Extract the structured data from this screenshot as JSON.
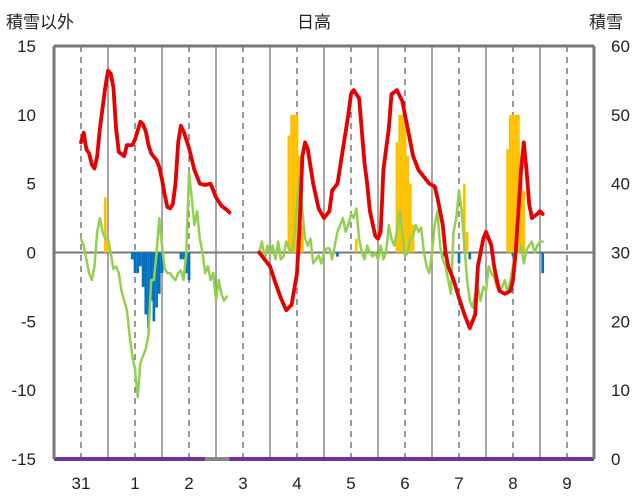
{
  "chart_data": {
    "type": "line",
    "title": "日高",
    "ylabel_left": "積雪以外",
    "ylabel_right": "積雪",
    "ylim_left": [
      -15,
      15
    ],
    "ylim_right": [
      0,
      60
    ],
    "yticks_left": [
      "15",
      "10",
      "5",
      "0",
      "-5",
      "-10",
      "-15"
    ],
    "yticks_right": [
      "60",
      "50",
      "40",
      "30",
      "20",
      "10",
      "0"
    ],
    "xticks": [
      "31",
      "1",
      "2",
      "3",
      "4",
      "5",
      "6",
      "7",
      "8",
      "9"
    ],
    "grid": "vertical-dashed",
    "colors": {
      "red_line": "#e60000",
      "green_line": "#92d050",
      "blue_bars": "#0070c0",
      "orange_bars": "#ffc000",
      "baseline": "#7030a0"
    },
    "series": [
      {
        "color": "red",
        "axis": "left",
        "points": [
          [
            31.0,
            8
          ],
          [
            31.05,
            8.7
          ],
          [
            31.1,
            7.5
          ],
          [
            31.15,
            7.2
          ],
          [
            31.2,
            6.4
          ],
          [
            31.25,
            6.1
          ],
          [
            31.3,
            7
          ],
          [
            31.35,
            9
          ],
          [
            31.45,
            12
          ],
          [
            31.5,
            13.2
          ],
          [
            31.55,
            13
          ],
          [
            31.6,
            12
          ],
          [
            31.65,
            9
          ],
          [
            31.7,
            7.3
          ],
          [
            31.8,
            7
          ],
          [
            31.85,
            7.8
          ],
          [
            31.95,
            7.8
          ],
          [
            32.0,
            8.2
          ],
          [
            32.1,
            9.5
          ],
          [
            32.15,
            9.3
          ],
          [
            32.2,
            8.8
          ],
          [
            32.25,
            7.8
          ],
          [
            32.3,
            7.2
          ],
          [
            32.4,
            6.7
          ],
          [
            32.45,
            6.2
          ],
          [
            32.5,
            5.3
          ],
          [
            32.55,
            4.2
          ],
          [
            32.6,
            3.3
          ],
          [
            32.65,
            3.2
          ],
          [
            32.7,
            3.5
          ],
          [
            32.75,
            5
          ],
          [
            32.8,
            8
          ],
          [
            32.85,
            9.2
          ],
          [
            32.9,
            8.8
          ],
          [
            33.0,
            7.6
          ],
          [
            33.1,
            6
          ],
          [
            33.2,
            5
          ],
          [
            33.3,
            4.9
          ],
          [
            33.4,
            5
          ],
          [
            33.5,
            4
          ],
          [
            33.6,
            3.4
          ],
          [
            33.7,
            3.1
          ],
          [
            33.75,
            2.9
          ]
        ]
      },
      {
        "color": "red",
        "axis": "left",
        "points": [
          [
            34.3,
            0
          ],
          [
            34.5,
            -1
          ],
          [
            34.6,
            -2.2
          ],
          [
            34.7,
            -3.3
          ],
          [
            34.8,
            -4.2
          ],
          [
            34.9,
            -3.8
          ],
          [
            35.0,
            -1.5
          ],
          [
            35.05,
            2
          ],
          [
            35.1,
            7
          ],
          [
            35.15,
            8
          ],
          [
            35.2,
            7.5
          ],
          [
            35.3,
            5
          ],
          [
            35.4,
            3.2
          ],
          [
            35.5,
            2.5
          ],
          [
            35.6,
            3
          ],
          [
            35.65,
            4.5
          ],
          [
            35.75,
            5
          ],
          [
            35.85,
            7.5
          ],
          [
            35.95,
            10
          ],
          [
            36.0,
            11.5
          ],
          [
            36.05,
            11.8
          ],
          [
            36.15,
            11.2
          ],
          [
            36.25,
            6.5
          ],
          [
            36.3,
            5
          ],
          [
            36.35,
            3
          ],
          [
            36.45,
            1.2
          ],
          [
            36.5,
            1
          ],
          [
            36.55,
            1.5
          ],
          [
            36.6,
            6
          ],
          [
            36.7,
            9
          ],
          [
            36.75,
            11.5
          ],
          [
            36.85,
            11.8
          ],
          [
            36.95,
            11
          ],
          [
            37.05,
            9
          ],
          [
            37.15,
            7
          ],
          [
            37.25,
            6
          ],
          [
            37.35,
            5.5
          ],
          [
            37.45,
            5
          ],
          [
            37.55,
            4.8
          ],
          [
            37.6,
            4
          ],
          [
            37.7,
            2
          ],
          [
            37.75,
            0
          ],
          [
            37.8,
            -1
          ],
          [
            37.9,
            -2
          ],
          [
            38.0,
            -3.3
          ],
          [
            38.1,
            -4.5
          ],
          [
            38.2,
            -5.5
          ],
          [
            38.3,
            -4.5
          ],
          [
            38.35,
            -1
          ],
          [
            38.45,
            1
          ],
          [
            38.5,
            1.5
          ],
          [
            38.6,
            0.5
          ],
          [
            38.65,
            -1
          ],
          [
            38.7,
            -2
          ],
          [
            38.75,
            -2.8
          ],
          [
            38.85,
            -3
          ],
          [
            38.95,
            -2.8
          ],
          [
            39.0,
            -2
          ],
          [
            39.05,
            0
          ],
          [
            39.1,
            3
          ],
          [
            39.15,
            6
          ],
          [
            39.2,
            8
          ],
          [
            39.25,
            6
          ],
          [
            39.3,
            3.5
          ],
          [
            39.35,
            2.5
          ],
          [
            39.45,
            2.8
          ],
          [
            39.5,
            3
          ],
          [
            39.55,
            2.8
          ]
        ]
      },
      {
        "color": "green",
        "axis": "left",
        "points": [
          [
            31.0,
            1
          ],
          [
            31.05,
            0.5
          ],
          [
            31.1,
            -0.5
          ],
          [
            31.15,
            -1.5
          ],
          [
            31.2,
            -2
          ],
          [
            31.25,
            -1
          ],
          [
            31.3,
            1.5
          ],
          [
            31.35,
            2.5
          ],
          [
            31.4,
            1.5
          ],
          [
            31.45,
            1
          ],
          [
            31.5,
            1
          ],
          [
            31.55,
            0
          ],
          [
            31.6,
            -1.2
          ],
          [
            31.65,
            -1
          ],
          [
            31.7,
            -1.5
          ],
          [
            31.75,
            -2.8
          ],
          [
            31.8,
            -3.5
          ],
          [
            31.85,
            -4.2
          ],
          [
            31.9,
            -6
          ],
          [
            31.95,
            -7.5
          ],
          [
            32.0,
            -8.5
          ],
          [
            32.05,
            -10.5
          ],
          [
            32.1,
            -8
          ],
          [
            32.15,
            -7.5
          ],
          [
            32.2,
            -7
          ],
          [
            32.25,
            -6
          ],
          [
            32.3,
            -2
          ],
          [
            32.35,
            -2
          ],
          [
            32.4,
            0
          ],
          [
            32.45,
            2.5
          ],
          [
            32.5,
            0.5
          ],
          [
            32.55,
            -1.2
          ],
          [
            32.6,
            -1.5
          ],
          [
            32.65,
            -1.5
          ],
          [
            32.7,
            -1.8
          ],
          [
            32.75,
            -2
          ],
          [
            32.8,
            -1.5
          ],
          [
            32.85,
            -1.3
          ],
          [
            32.9,
            -2
          ],
          [
            32.95,
            0
          ],
          [
            33.0,
            5.8
          ],
          [
            33.05,
            4
          ],
          [
            33.1,
            2
          ],
          [
            33.15,
            3
          ],
          [
            33.2,
            1
          ],
          [
            33.25,
            0
          ],
          [
            33.3,
            -1.5
          ],
          [
            33.35,
            -1
          ],
          [
            33.4,
            -2
          ],
          [
            33.45,
            -1.5
          ],
          [
            33.5,
            -3.5
          ],
          [
            33.55,
            -2
          ],
          [
            33.6,
            -3
          ],
          [
            33.65,
            -3.5
          ],
          [
            33.7,
            -3.2
          ]
        ]
      },
      {
        "color": "green",
        "axis": "left",
        "points": [
          [
            34.3,
            0
          ],
          [
            34.35,
            0.8
          ],
          [
            34.4,
            -0.5
          ],
          [
            34.45,
            0.5
          ],
          [
            34.5,
            0
          ],
          [
            34.55,
            0.5
          ],
          [
            34.6,
            -0.5
          ],
          [
            34.65,
            0.8
          ],
          [
            34.7,
            -0.5
          ],
          [
            34.75,
            -0.3
          ],
          [
            34.8,
            0.8
          ],
          [
            34.85,
            0.3
          ],
          [
            34.9,
            0
          ],
          [
            34.95,
            1
          ],
          [
            35.0,
            3.5
          ],
          [
            35.05,
            5.5
          ],
          [
            35.1,
            3
          ],
          [
            35.15,
            1
          ],
          [
            35.2,
            0.5
          ],
          [
            35.25,
            1
          ],
          [
            35.3,
            -0.8
          ],
          [
            35.35,
            -0.5
          ],
          [
            35.4,
            -0.2
          ],
          [
            35.45,
            -0.8
          ],
          [
            35.5,
            0
          ],
          [
            35.55,
            0.3
          ],
          [
            35.6,
            0.3
          ],
          [
            35.65,
            -0.5
          ],
          [
            35.7,
            0.5
          ],
          [
            35.75,
            1.5
          ],
          [
            35.8,
            2
          ],
          [
            35.85,
            2.5
          ],
          [
            35.9,
            1.5
          ],
          [
            35.95,
            2
          ],
          [
            36.0,
            2.8
          ],
          [
            36.05,
            2.5
          ],
          [
            36.1,
            3.2
          ],
          [
            36.15,
            1
          ],
          [
            36.2,
            0
          ],
          [
            36.25,
            -0.5
          ],
          [
            36.3,
            0.5
          ],
          [
            36.35,
            0
          ],
          [
            36.4,
            -0.3
          ],
          [
            36.45,
            0
          ],
          [
            36.5,
            -0.5
          ],
          [
            36.55,
            0.5
          ],
          [
            36.6,
            -0.5
          ],
          [
            36.65,
            0
          ],
          [
            36.7,
            2
          ],
          [
            36.75,
            1
          ],
          [
            36.8,
            0.5
          ],
          [
            36.85,
            1.5
          ],
          [
            36.9,
            3
          ],
          [
            36.95,
            1.5
          ],
          [
            37.0,
            -0.3
          ],
          [
            37.05,
            0
          ],
          [
            37.1,
            1
          ],
          [
            37.15,
            1.2
          ],
          [
            37.2,
            2
          ],
          [
            37.25,
            1.5
          ],
          [
            37.3,
            1.8
          ],
          [
            37.35,
            0
          ],
          [
            37.4,
            -1
          ],
          [
            37.45,
            -1.5
          ],
          [
            37.5,
            0
          ],
          [
            37.55,
            2
          ],
          [
            37.6,
            3
          ],
          [
            37.65,
            0.5
          ],
          [
            37.7,
            -0.5
          ],
          [
            37.75,
            -1
          ],
          [
            37.8,
            -2
          ],
          [
            37.85,
            -3
          ],
          [
            37.9,
            1.5
          ],
          [
            37.95,
            2.5
          ],
          [
            38.0,
            4.5
          ],
          [
            38.05,
            3
          ],
          [
            38.1,
            0.5
          ],
          [
            38.15,
            -2
          ],
          [
            38.2,
            -3.5
          ],
          [
            38.25,
            -4
          ],
          [
            38.3,
            -3
          ],
          [
            38.35,
            -2.5
          ],
          [
            38.4,
            -3.5
          ],
          [
            38.45,
            -2.5
          ],
          [
            38.5,
            -2.8
          ],
          [
            38.55,
            -1
          ],
          [
            38.6,
            -1.5
          ],
          [
            38.65,
            -1.8
          ],
          [
            38.7,
            -2.5
          ],
          [
            38.75,
            -2.8
          ],
          [
            38.8,
            -2.5
          ],
          [
            38.85,
            -2
          ],
          [
            38.9,
            -3
          ],
          [
            38.95,
            -2
          ],
          [
            39.0,
            -1
          ],
          [
            39.05,
            0.5
          ],
          [
            39.1,
            0
          ],
          [
            39.15,
            0.5
          ],
          [
            39.2,
            -0.8
          ],
          [
            39.25,
            0.2
          ],
          [
            39.3,
            0.5
          ],
          [
            39.35,
            0.8
          ],
          [
            39.4,
            0
          ],
          [
            39.45,
            0.5
          ],
          [
            39.5,
            0.8
          ],
          [
            39.55,
            0.8
          ]
        ]
      }
    ],
    "bars_blue": [
      [
        31.95,
        -0.5
      ],
      [
        32.0,
        -1.5
      ],
      [
        32.05,
        -1.5
      ],
      [
        32.1,
        -1.0
      ],
      [
        32.15,
        -2.5
      ],
      [
        32.2,
        -4.5
      ],
      [
        32.25,
        -5.5
      ],
      [
        32.3,
        -3.5
      ],
      [
        32.35,
        -5.0
      ],
      [
        32.4,
        -4.0
      ],
      [
        32.45,
        -3.0
      ],
      [
        32.5,
        -1.5
      ],
      [
        32.85,
        -0.5
      ],
      [
        32.9,
        -0.5
      ],
      [
        32.95,
        -1.5
      ],
      [
        33.0,
        -2.0
      ],
      [
        35.75,
        -0.3
      ],
      [
        37.7,
        -0.3
      ],
      [
        38.0,
        -0.8
      ],
      [
        38.2,
        -0.5
      ],
      [
        39.0,
        -0.3
      ],
      [
        39.55,
        -1.5
      ]
    ],
    "bars_orange": [
      [
        31.45,
        4.0
      ],
      [
        31.5,
        1.0
      ],
      [
        34.85,
        8.5
      ],
      [
        34.9,
        10.0
      ],
      [
        34.95,
        10.0
      ],
      [
        35.0,
        10.0
      ],
      [
        35.05,
        7.0
      ],
      [
        35.1,
        2.0
      ],
      [
        36.1,
        1.0
      ],
      [
        36.85,
        8.0
      ],
      [
        36.9,
        10.0
      ],
      [
        36.95,
        10.0
      ],
      [
        37.0,
        10.0
      ],
      [
        37.05,
        7.0
      ],
      [
        37.1,
        5.0
      ],
      [
        37.15,
        2.0
      ],
      [
        38.1,
        5.0
      ],
      [
        38.15,
        1.5
      ],
      [
        38.9,
        7.5
      ],
      [
        38.95,
        10.0
      ],
      [
        39.0,
        10.0
      ],
      [
        39.05,
        10.0
      ],
      [
        39.1,
        10.0
      ],
      [
        39.15,
        7.0
      ],
      [
        39.2,
        4.5
      ]
    ]
  }
}
